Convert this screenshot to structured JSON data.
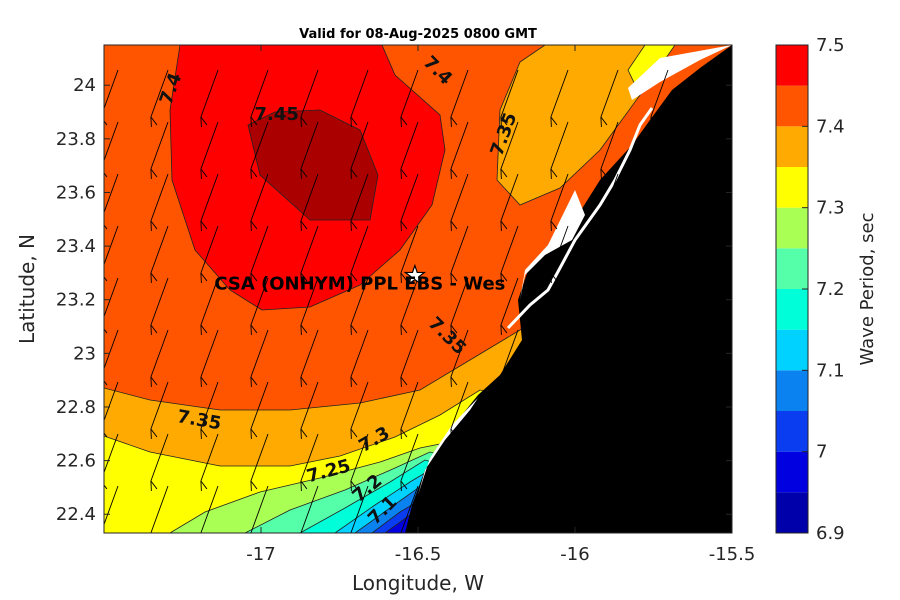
{
  "chart_data": {
    "type": "contour-map",
    "title": "Valid for 08-Aug-2025 0800 GMT",
    "xlabel": "Longitude, W",
    "ylabel": "Latitude, N",
    "xlim": [
      -17.5,
      -15.5
    ],
    "ylim": [
      22.33,
      24.15
    ],
    "xticks": [
      -17,
      -16.5,
      -16,
      -15.5
    ],
    "xtick_labels": [
      "-17",
      "-16.5",
      "-16",
      "-15.5"
    ],
    "yticks": [
      22.4,
      22.6,
      22.8,
      23,
      23.2,
      23.4,
      23.6,
      23.8,
      24
    ],
    "ytick_labels": [
      "22.4",
      "22.6",
      "22.8",
      "23",
      "23.2",
      "23.4",
      "23.6",
      "23.8",
      "24"
    ],
    "colorbar": {
      "label": "Wave Period, sec",
      "min": 6.9,
      "max": 7.5,
      "levels": [
        6.9,
        6.95,
        7.0,
        7.05,
        7.1,
        7.15,
        7.2,
        7.25,
        7.3,
        7.35,
        7.4,
        7.45,
        7.5
      ],
      "colors": [
        "#0000aa",
        "#0000e0",
        "#0a3cf0",
        "#0a82f0",
        "#00d2ff",
        "#00ffd8",
        "#55ffaa",
        "#aaff55",
        "#ffff00",
        "#ffaa00",
        "#ff5500",
        "#ff0000",
        "#aa0000"
      ],
      "tick_values": [
        6.9,
        7.0,
        7.1,
        7.2,
        7.3,
        7.4,
        7.5
      ],
      "tick_labels": [
        "6.9",
        "7",
        "7.1",
        "7.2",
        "7.3",
        "7.4",
        "7.5"
      ]
    },
    "contour_labels": [
      {
        "text": "7.4",
        "lon": -17.27,
        "lat": 23.98
      },
      {
        "text": "7.4",
        "lon": -16.45,
        "lat": 24.04
      },
      {
        "text": "7.45",
        "lon": -16.95,
        "lat": 23.87
      },
      {
        "text": "7.35",
        "lon": -16.21,
        "lat": 23.81
      },
      {
        "text": "7.35",
        "lon": -16.42,
        "lat": 23.05
      },
      {
        "text": "7.35",
        "lon": -17.2,
        "lat": 22.73
      },
      {
        "text": "7.3",
        "lon": -16.63,
        "lat": 22.66
      },
      {
        "text": "7.25",
        "lon": -16.78,
        "lat": 22.54
      },
      {
        "text": "7.2",
        "lon": -16.65,
        "lat": 22.48
      },
      {
        "text": "7.1",
        "lon": -16.6,
        "lat": 22.4
      }
    ],
    "marker": {
      "symbol": "star",
      "lon": -16.51,
      "lat": 23.29,
      "label": "CSA (ONHYM) PPL EBS  - Wes"
    },
    "land_color": "#000000",
    "wave_direction": "arrows pointing southwest (approx. 20° from north)"
  }
}
